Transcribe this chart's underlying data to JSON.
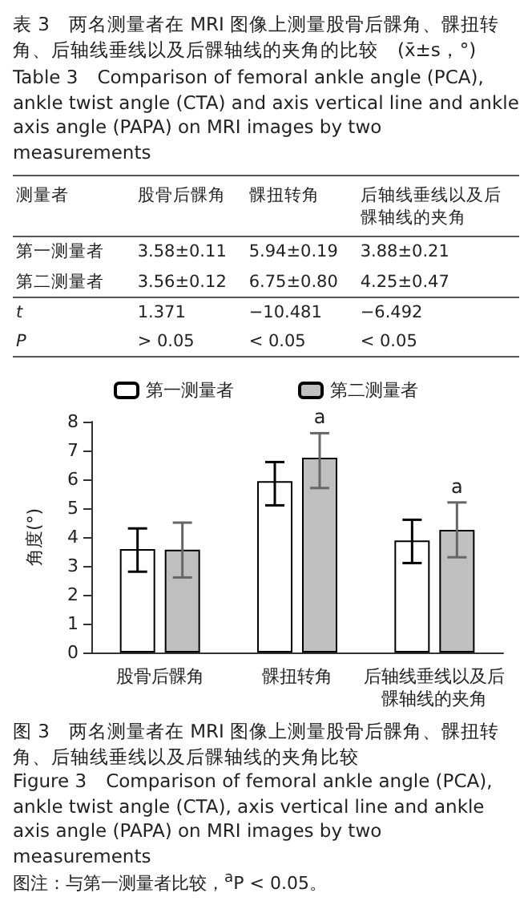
{
  "chart_data": [
    {
      "type": "other",
      "title": "表 3　两名测量者在 MRI 图像上测量股骨后髁角、髁扭转角、后轴线垂线以及后髁轴线的夹角的比较　(x̄±s，°)",
      "subtitle": "Table 3　Comparison of femoral ankle angle (PCA), ankle twist angle (CTA) and axis vertical line and ankle axis angle (PAPA) on MRI images by two measurements",
      "categories": [
        "测量者",
        "股骨后髁角",
        "髁扭转角",
        "后轴线垂线以及后髁轴线的夹角"
      ],
      "annotations": [
        "第一测量者",
        "3.58±0.11",
        "5.94±0.19",
        "3.88±0.21",
        "第二测量者",
        "3.56±0.12",
        "6.75±0.80",
        "4.25±0.47",
        "t",
        "1.371",
        "−10.481",
        "−6.492",
        "P",
        "> 0.05",
        "< 0.05",
        "< 0.05"
      ]
    },
    {
      "type": "bar",
      "title": "图 3　两名测量者在 MRI 图像上测量股骨后髁角、髁扭转角、后轴线垂线以及后髁轴线的夹角比较",
      "subtitle": "Figure 3　Comparison of femoral ankle angle (PCA), ankle twist angle (CTA), axis vertical line and ankle axis angle (PAPA) on MRI images by two measurements",
      "ylabel": "角度(°)",
      "categories": [
        "股骨后髁角",
        "髁扭转角",
        "后轴线垂线以及后髁轴线的夹角"
      ],
      "series": [
        {
          "name": "第一测量者",
          "color": "#ffffff",
          "values": [
            3.58,
            5.94,
            3.88
          ],
          "errors": [
            [
              2.8,
              4.3
            ],
            [
              5.1,
              6.6
            ],
            [
              3.1,
              4.6
            ]
          ]
        },
        {
          "name": "第二测量者",
          "color": "#bfbfbf",
          "values": [
            3.56,
            6.75,
            4.25
          ],
          "errors": [
            [
              2.6,
              4.5
            ],
            [
              5.7,
              7.6
            ],
            [
              3.3,
              5.2
            ]
          ]
        }
      ],
      "ylim": [
        0,
        8
      ],
      "yticks": [
        0,
        1,
        2,
        3,
        4,
        5,
        6,
        7,
        8
      ],
      "grid": false,
      "legend": "top",
      "annotations": [
        {
          "text": "a",
          "x": "髁扭转角",
          "y": 6.75
        },
        {
          "text": "a",
          "x": "后轴线垂线以及后髁轴线的夹角",
          "y": 4.25
        },
        "图注：与第一测量者比较，$^{a}$P < 0.05。"
      ]
    }
  ]
}
